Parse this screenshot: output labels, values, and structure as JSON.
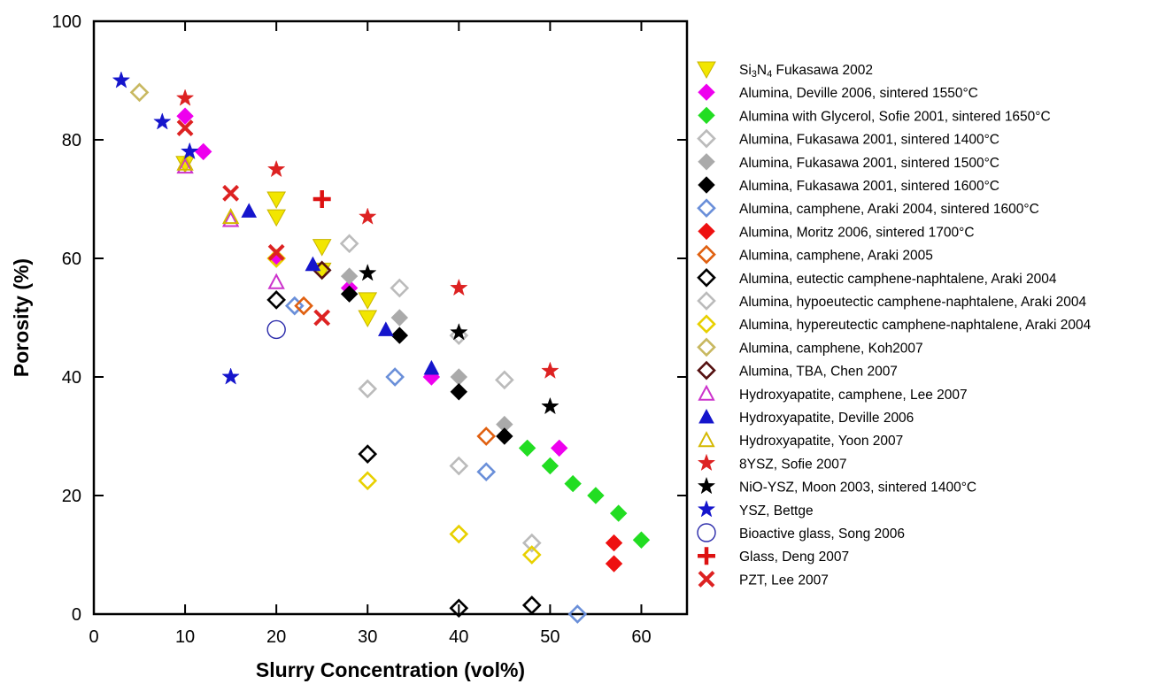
{
  "chart_data": {
    "type": "scatter",
    "xlabel": "Slurry Concentration (vol%)",
    "ylabel": "Porosity (%)",
    "xlim": [
      0,
      65
    ],
    "ylim": [
      0,
      100
    ],
    "x_ticks": [
      "0",
      "10",
      "20",
      "30",
      "40",
      "50",
      "60"
    ],
    "y_ticks": [
      "0",
      "20",
      "40",
      "60",
      "80",
      "100"
    ],
    "grid": false,
    "legend_position": "right",
    "series": [
      {
        "name": "Si3N4 Fukasawa 2002",
        "name_main": "Si",
        "name_sub1": "3",
        "name_mid": "N",
        "name_sub2": "4",
        "name_tail": " Fukasawa 2002",
        "marker": "triangle-down",
        "color": "#f2e600",
        "fill": true,
        "points": [
          [
            10,
            76
          ],
          [
            20,
            70
          ],
          [
            20,
            67
          ],
          [
            25,
            62
          ],
          [
            25,
            58
          ],
          [
            30,
            53
          ],
          [
            30,
            50
          ]
        ]
      },
      {
        "name": "Alumina, Deville 2006, sintered 1550°C",
        "marker": "diamond",
        "color": "#ee00ee",
        "fill": true,
        "points": [
          [
            10,
            84
          ],
          [
            12,
            78
          ],
          [
            20,
            60
          ],
          [
            28,
            55
          ],
          [
            37,
            40
          ],
          [
            51,
            28
          ]
        ]
      },
      {
        "name": "Alumina with Glycerol, Sofie 2001, sintered 1650°C",
        "marker": "diamond",
        "color": "#22dd22",
        "fill": true,
        "points": [
          [
            47.5,
            28
          ],
          [
            50,
            25
          ],
          [
            52.5,
            22
          ],
          [
            55,
            20
          ],
          [
            57.5,
            17
          ],
          [
            60,
            12.5
          ]
        ]
      },
      {
        "name": "Alumina, Fukasawa 2001, sintered 1400°C",
        "marker": "diamond",
        "color": "#bbbbbb",
        "fill": false,
        "points": [
          [
            28,
            62.5
          ],
          [
            33.5,
            55
          ],
          [
            40,
            47
          ],
          [
            45,
            39.5
          ]
        ]
      },
      {
        "name": "Alumina, Fukasawa 2001, sintered 1500°C",
        "marker": "diamond",
        "color": "#aaaaaa",
        "fill": true,
        "points": [
          [
            28,
            57
          ],
          [
            33.5,
            50
          ],
          [
            40,
            40
          ],
          [
            45,
            32
          ]
        ]
      },
      {
        "name": "Alumina, Fukasawa 2001, sintered 1600°C",
        "marker": "diamond",
        "color": "#000000",
        "fill": true,
        "points": [
          [
            28,
            54
          ],
          [
            33.5,
            47
          ],
          [
            40,
            37.5
          ],
          [
            45,
            30
          ]
        ]
      },
      {
        "name": "Alumina, camphene, Araki 2004, sintered 1600°C",
        "marker": "diamond",
        "color": "#6a8fd9",
        "fill": false,
        "points": [
          [
            22,
            52
          ],
          [
            33,
            40
          ],
          [
            43,
            24
          ],
          [
            53,
            0
          ]
        ]
      },
      {
        "name": "Alumina, Moritz 2006, sintered 1700°C",
        "marker": "diamond",
        "color": "#ee1111",
        "fill": true,
        "points": [
          [
            57,
            12
          ],
          [
            57,
            8.5
          ]
        ]
      },
      {
        "name": "Alumina, camphene, Araki 2005",
        "marker": "diamond",
        "color": "#e06010",
        "fill": false,
        "points": [
          [
            23,
            52
          ],
          [
            43,
            30
          ]
        ]
      },
      {
        "name": "Alumina, eutectic camphene-naphtalene, Araki 2004",
        "marker": "diamond",
        "color": "#000000",
        "fill": false,
        "points": [
          [
            20,
            53
          ],
          [
            30,
            27
          ],
          [
            40,
            1
          ],
          [
            48,
            1.5
          ]
        ]
      },
      {
        "name": "Alumina, hypoeutectic camphene-naphtalene, Araki 2004",
        "marker": "diamond",
        "color": "#bbbbbb",
        "fill": false,
        "points": [
          [
            30,
            38
          ],
          [
            40,
            25
          ],
          [
            48,
            12
          ]
        ]
      },
      {
        "name": "Alumina, hypereutectic camphene-naphtalene, Araki 2004",
        "marker": "diamond",
        "color": "#e8d000",
        "fill": false,
        "points": [
          [
            20,
            60
          ],
          [
            30,
            22.5
          ],
          [
            40,
            13.5
          ],
          [
            48,
            10
          ]
        ]
      },
      {
        "name": "Alumina, camphene, Koh2007",
        "marker": "diamond",
        "color": "#c8b860",
        "fill": false,
        "points": [
          [
            5,
            88
          ]
        ]
      },
      {
        "name": "Alumina, TBA, Chen 2007",
        "marker": "diamond",
        "color": "#551111",
        "fill": false,
        "points": [
          [
            25,
            58
          ]
        ]
      },
      {
        "name": "Hydroxyapatite, camphene, Lee 2007",
        "marker": "triangle-up",
        "color": "#cc33cc",
        "fill": false,
        "points": [
          [
            10,
            75.5
          ],
          [
            15,
            66.5
          ],
          [
            20,
            56
          ]
        ]
      },
      {
        "name": "Hydroxyapatite, Deville 2006",
        "marker": "triangle-up",
        "color": "#1515cc",
        "fill": true,
        "points": [
          [
            17,
            68
          ],
          [
            24,
            59
          ],
          [
            32,
            48
          ],
          [
            37,
            41.5
          ]
        ]
      },
      {
        "name": "Hydroxyapatite, Yoon 2007",
        "marker": "triangle-up",
        "color": "#d4b800",
        "fill": false,
        "points": [
          [
            10,
            76
          ],
          [
            15,
            67
          ]
        ]
      },
      {
        "name": "8YSZ, Sofie 2007",
        "marker": "star",
        "color": "#dd2222",
        "fill": true,
        "points": [
          [
            10,
            87
          ],
          [
            20,
            75
          ],
          [
            30,
            67
          ],
          [
            40,
            55
          ],
          [
            50,
            41
          ]
        ]
      },
      {
        "name": "NiO-YSZ,  Moon 2003, sintered 1400°C",
        "marker": "star",
        "color": "#000000",
        "fill": true,
        "points": [
          [
            30,
            57.5
          ],
          [
            40,
            47.5
          ],
          [
            50,
            35
          ]
        ]
      },
      {
        "name": "YSZ, Bettge",
        "marker": "star",
        "color": "#1515cc",
        "fill": true,
        "points": [
          [
            3,
            90
          ],
          [
            7.5,
            83
          ],
          [
            10.5,
            78
          ],
          [
            15,
            40
          ]
        ]
      },
      {
        "name": "Bioactive glass, Song 2006",
        "marker": "circle",
        "color": "#2a2aaa",
        "fill": false,
        "points": [
          [
            20,
            48
          ]
        ]
      },
      {
        "name": "Glass, Deng 2007",
        "marker": "plus",
        "color": "#dd1111",
        "fill": true,
        "points": [
          [
            25,
            70
          ]
        ]
      },
      {
        "name": "PZT, Lee 2007",
        "marker": "cross",
        "color": "#dd2222",
        "fill": true,
        "points": [
          [
            10,
            82
          ],
          [
            15,
            71
          ],
          [
            20,
            61
          ],
          [
            25,
            50
          ]
        ]
      }
    ]
  }
}
